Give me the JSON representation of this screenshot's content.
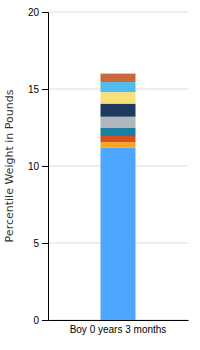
{
  "chart_data": {
    "type": "bar",
    "stacked": true,
    "categories": [
      "Boy 0 years 3 months"
    ],
    "series": [
      {
        "color": "#4da6ff",
        "values": [
          11.2
        ]
      },
      {
        "color": "#f5a623",
        "values": [
          0.35
        ]
      },
      {
        "color": "#d94f1e",
        "values": [
          0.4
        ]
      },
      {
        "color": "#1a7fa0",
        "values": [
          0.55
        ]
      },
      {
        "color": "#b0b8be",
        "values": [
          0.7
        ]
      },
      {
        "color": "#1e3a5f",
        "values": [
          0.85
        ]
      },
      {
        "color": "#f7e07a",
        "values": [
          0.75
        ]
      },
      {
        "color": "#4dbcf0",
        "values": [
          0.65
        ]
      },
      {
        "color": "#c96a3a",
        "values": [
          0.55
        ]
      }
    ],
    "ylabel": "Percentile Weight in Pounds",
    "ylim": [
      0,
      20
    ],
    "yticks": [
      0,
      5,
      10,
      15,
      20
    ],
    "grid": true
  }
}
